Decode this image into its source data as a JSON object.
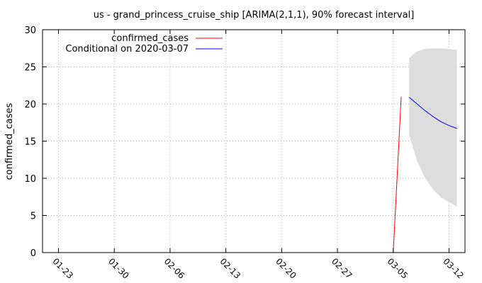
{
  "chart_data": {
    "type": "line",
    "title": "us - grand_princess_cruise_ship [ARIMA(2,1,1), 90% forecast interval]",
    "xlabel": "",
    "ylabel": "confirmed_cases",
    "x_tick_labels": [
      "01-23",
      "01-30",
      "02-06",
      "02-13",
      "02-20",
      "02-27",
      "03-05",
      "03-12"
    ],
    "x_tick_dates": [
      "2020-01-23",
      "2020-01-30",
      "2020-02-06",
      "2020-02-13",
      "2020-02-20",
      "2020-02-27",
      "2020-03-05",
      "2020-03-12"
    ],
    "xlim": [
      "2020-01-21",
      "2020-03-14"
    ],
    "ylim": [
      0,
      30
    ],
    "y_ticks": [
      0,
      5,
      10,
      15,
      20,
      25,
      30
    ],
    "grid": true,
    "legend_position": "top-left",
    "series": [
      {
        "name": "confirmed_cases",
        "color": "#ff0000",
        "points": [
          {
            "x": "2020-03-05",
            "y": 0
          },
          {
            "x": "2020-03-06",
            "y": 21
          }
        ]
      },
      {
        "name": "Conditional on 2020-03-07",
        "color": "#0000ff",
        "points": [
          {
            "x": "2020-03-07",
            "y": 20.9
          },
          {
            "x": "2020-03-08",
            "y": 20.0
          },
          {
            "x": "2020-03-09",
            "y": 19.1
          },
          {
            "x": "2020-03-10",
            "y": 18.3
          },
          {
            "x": "2020-03-11",
            "y": 17.6
          },
          {
            "x": "2020-03-12",
            "y": 17.1
          },
          {
            "x": "2020-03-13",
            "y": 16.7
          }
        ]
      }
    ],
    "forecast_interval": {
      "color": "#dddddd",
      "points": [
        {
          "x": "2020-03-07",
          "lower": 15.8,
          "upper": 26.2
        },
        {
          "x": "2020-03-08",
          "lower": 12.3,
          "upper": 27.1
        },
        {
          "x": "2020-03-09",
          "lower": 10.0,
          "upper": 27.4
        },
        {
          "x": "2020-03-10",
          "lower": 8.5,
          "upper": 27.5
        },
        {
          "x": "2020-03-11",
          "lower": 7.4,
          "upper": 27.5
        },
        {
          "x": "2020-03-12",
          "lower": 6.8,
          "upper": 27.4
        },
        {
          "x": "2020-03-13",
          "lower": 6.2,
          "upper": 27.3
        }
      ]
    }
  }
}
